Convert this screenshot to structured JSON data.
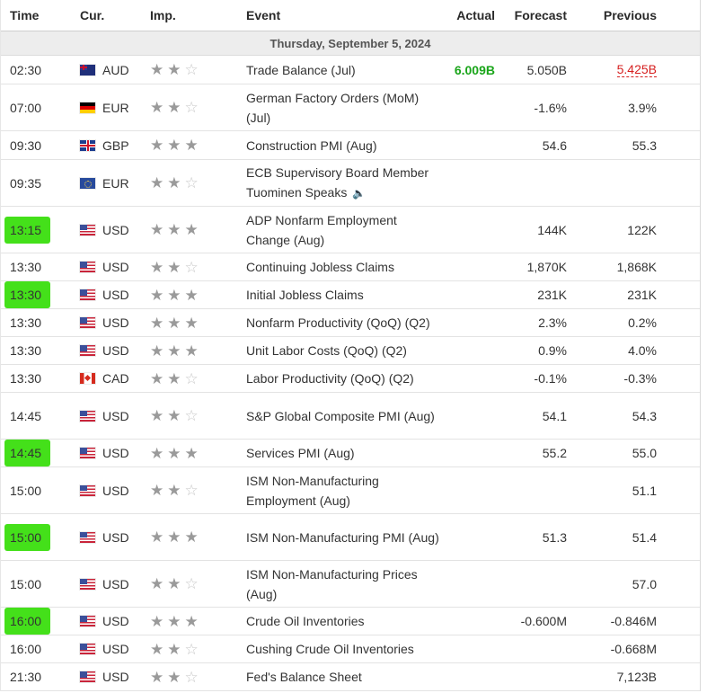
{
  "header": {
    "time": "Time",
    "cur": "Cur.",
    "imp": "Imp.",
    "event": "Event",
    "actual": "Actual",
    "forecast": "Forecast",
    "previous": "Previous"
  },
  "day_label": "Thursday, September 5, 2024",
  "rows": [
    {
      "time": "02:30",
      "flag": "aud",
      "cur": "AUD",
      "stars": 2,
      "event": "Trade Balance (Jul)",
      "actual": "6.009B",
      "actual_style": "green",
      "forecast": "5.050B",
      "previous": "5.425B",
      "previous_style": "red",
      "highlight": false,
      "speaker": false,
      "height": 32
    },
    {
      "time": "07:00",
      "flag": "eur-de",
      "cur": "EUR",
      "stars": 2,
      "event": "German Factory Orders (MoM) (Jul)",
      "actual": "",
      "forecast": "-1.6%",
      "previous": "3.9%",
      "highlight": false,
      "speaker": false,
      "height": 52
    },
    {
      "time": "09:30",
      "flag": "gbp",
      "cur": "GBP",
      "stars": 3,
      "event": "Construction PMI (Aug)",
      "actual": "",
      "forecast": "54.6",
      "previous": "55.3",
      "highlight": false,
      "speaker": false,
      "height": 32
    },
    {
      "time": "09:35",
      "flag": "eu",
      "cur": "EUR",
      "stars": 2,
      "event": "ECB Supervisory Board Member Tuominen Speaks",
      "actual": "",
      "forecast": "",
      "previous": "",
      "highlight": false,
      "speaker": true,
      "height": 52
    },
    {
      "time": "13:15",
      "flag": "usd",
      "cur": "USD",
      "stars": 3,
      "event": "ADP Nonfarm Employment Change (Aug)",
      "actual": "",
      "forecast": "144K",
      "previous": "122K",
      "highlight": true,
      "speaker": false,
      "height": 52
    },
    {
      "time": "13:30",
      "flag": "usd",
      "cur": "USD",
      "stars": 2,
      "event": "Continuing Jobless Claims",
      "actual": "",
      "forecast": "1,870K",
      "previous": "1,868K",
      "highlight": false,
      "speaker": false,
      "height": 31
    },
    {
      "time": "13:30",
      "flag": "usd",
      "cur": "USD",
      "stars": 3,
      "event": "Initial Jobless Claims",
      "actual": "",
      "forecast": "231K",
      "previous": "231K",
      "highlight": true,
      "speaker": false,
      "height": 31
    },
    {
      "time": "13:30",
      "flag": "usd",
      "cur": "USD",
      "stars": 3,
      "event": "Nonfarm Productivity (QoQ) (Q2)",
      "actual": "",
      "forecast": "2.3%",
      "previous": "0.2%",
      "highlight": false,
      "speaker": false,
      "height": 31
    },
    {
      "time": "13:30",
      "flag": "usd",
      "cur": "USD",
      "stars": 3,
      "event": "Unit Labor Costs (QoQ) (Q2)",
      "actual": "",
      "forecast": "0.9%",
      "previous": "4.0%",
      "highlight": false,
      "speaker": false,
      "height": 31
    },
    {
      "time": "13:30",
      "flag": "cad",
      "cur": "CAD",
      "stars": 2,
      "event": "Labor Productivity (QoQ) (Q2)",
      "actual": "",
      "forecast": "-0.1%",
      "previous": "-0.3%",
      "highlight": false,
      "speaker": false,
      "height": 31
    },
    {
      "time": "14:45",
      "flag": "usd",
      "cur": "USD",
      "stars": 2,
      "event": "S&P Global Composite PMI (Aug)",
      "actual": "",
      "forecast": "54.1",
      "previous": "54.3",
      "highlight": false,
      "speaker": false,
      "height": 52
    },
    {
      "time": "14:45",
      "flag": "usd",
      "cur": "USD",
      "stars": 3,
      "event": "Services PMI (Aug)",
      "actual": "",
      "forecast": "55.2",
      "previous": "55.0",
      "highlight": true,
      "speaker": false,
      "height": 31
    },
    {
      "time": "15:00",
      "flag": "usd",
      "cur": "USD",
      "stars": 2,
      "event": "ISM Non-Manufacturing Employment (Aug)",
      "actual": "",
      "forecast": "",
      "previous": "51.1",
      "highlight": false,
      "speaker": false,
      "height": 52
    },
    {
      "time": "15:00",
      "flag": "usd",
      "cur": "USD",
      "stars": 3,
      "event": "ISM Non-Manufacturing PMI (Aug)",
      "actual": "",
      "forecast": "51.3",
      "previous": "51.4",
      "highlight": true,
      "speaker": false,
      "height": 52
    },
    {
      "time": "15:00",
      "flag": "usd",
      "cur": "USD",
      "stars": 2,
      "event": "ISM Non-Manufacturing Prices (Aug)",
      "actual": "",
      "forecast": "",
      "previous": "57.0",
      "highlight": false,
      "speaker": false,
      "height": 52
    },
    {
      "time": "16:00",
      "flag": "usd",
      "cur": "USD",
      "stars": 3,
      "event": "Crude Oil Inventories",
      "actual": "",
      "forecast": "-0.600M",
      "previous": "-0.846M",
      "highlight": true,
      "speaker": false,
      "height": 31
    },
    {
      "time": "16:00",
      "flag": "usd",
      "cur": "USD",
      "stars": 2,
      "event": "Cushing Crude Oil Inventories",
      "actual": "",
      "forecast": "",
      "previous": "-0.668M",
      "highlight": false,
      "speaker": false,
      "height": 31
    },
    {
      "time": "21:30",
      "flag": "usd",
      "cur": "USD",
      "stars": 2,
      "event": "Fed's Balance Sheet",
      "actual": "",
      "forecast": "",
      "previous": "7,123B",
      "highlight": false,
      "speaker": false,
      "height": 31
    }
  ],
  "colors": {
    "highlight": "#44e01a",
    "actual_green": "#1aa51a",
    "previous_red": "#d62020"
  },
  "icons": {
    "star": "star-icon",
    "speaker": "speaker-icon"
  }
}
